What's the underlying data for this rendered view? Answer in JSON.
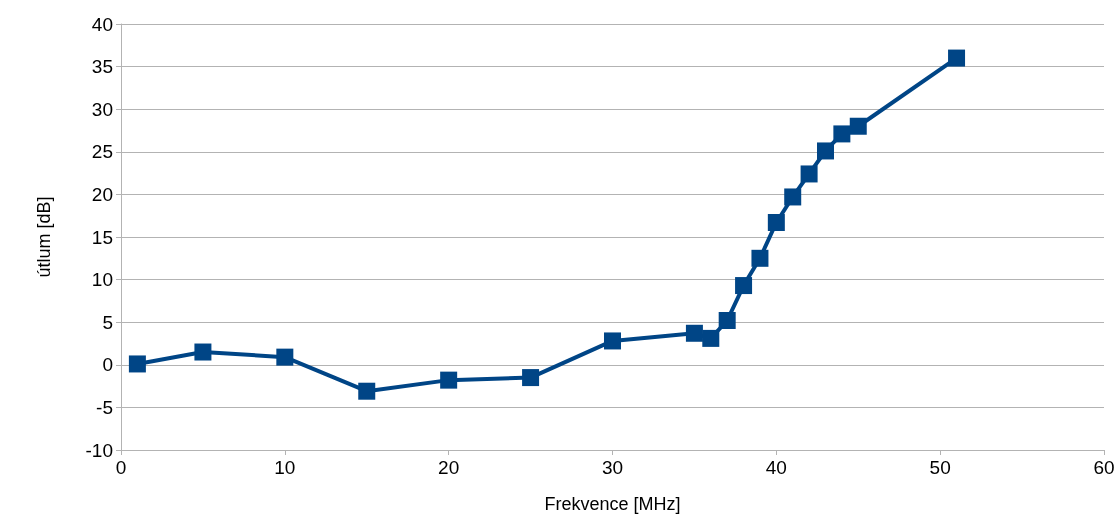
{
  "chart_data": {
    "type": "line",
    "xlabel": "Frekvence [MHz]",
    "ylabel": "útlum [dB]",
    "x": [
      1,
      5,
      10,
      15,
      20,
      25,
      30,
      35,
      36,
      37,
      38,
      39,
      40,
      41,
      42,
      43,
      44,
      45,
      51
    ],
    "series": [
      {
        "color": "#004586",
        "values": [
          0.1,
          1.5,
          0.9,
          -3.1,
          -1.8,
          -1.5,
          2.8,
          3.7,
          3.1,
          5.2,
          9.3,
          12.5,
          16.7,
          19.7,
          22.4,
          25.1,
          27.1,
          28,
          36
        ]
      }
    ],
    "xlim": [
      0,
      60
    ],
    "xticks": [
      0,
      10,
      20,
      30,
      40,
      50,
      60
    ],
    "ylim": [
      -10,
      40
    ],
    "yticks": [
      -10,
      -5,
      0,
      5,
      10,
      15,
      20,
      25,
      30,
      35,
      40
    ],
    "grid": "y",
    "marker": "square",
    "line_style": "solid"
  }
}
